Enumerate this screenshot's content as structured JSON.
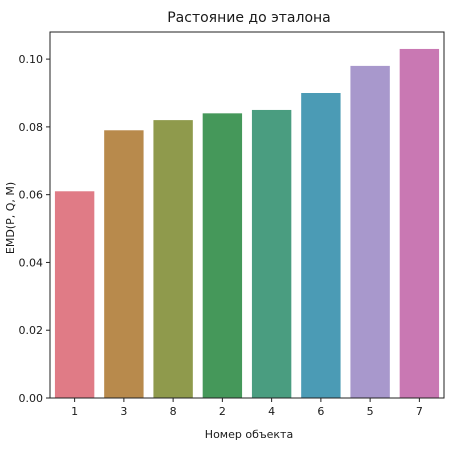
{
  "chart_data": {
    "type": "bar",
    "title": "Растояние до эталона",
    "xlabel": "Номер объекта",
    "ylabel": "EMD(P, Q, M)",
    "categories": [
      "1",
      "3",
      "8",
      "2",
      "4",
      "6",
      "5",
      "7"
    ],
    "values": [
      0.061,
      0.079,
      0.082,
      0.084,
      0.085,
      0.09,
      0.098,
      0.103
    ],
    "colors": [
      "#e07b86",
      "#b88a4c",
      "#8f9a4c",
      "#45985a",
      "#4a9d80",
      "#4b9bb5",
      "#a898cc",
      "#c978b3"
    ],
    "ylim": [
      0,
      0.108
    ],
    "yticks": [
      "0.00",
      "0.02",
      "0.04",
      "0.06",
      "0.08",
      "0.10"
    ],
    "grid": false
  }
}
